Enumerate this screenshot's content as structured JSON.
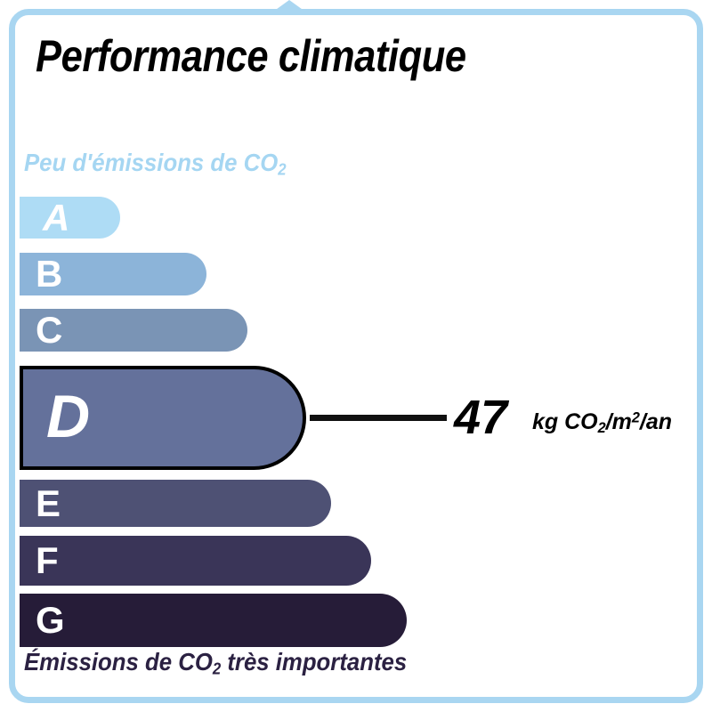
{
  "header": {
    "title": "Performance climatique"
  },
  "scale": {
    "top_label": {
      "text": "Peu d'émissions de CO",
      "sub": "2"
    },
    "bottom_label": {
      "text": "Émissions de CO",
      "sub": "2",
      "suffix": " très importantes"
    },
    "selected_grade": "D",
    "bars": [
      {
        "grade": "A",
        "color": "#AEDCF5"
      },
      {
        "grade": "B",
        "color": "#8CB4D9"
      },
      {
        "grade": "C",
        "color": "#7A94B5"
      },
      {
        "grade": "D",
        "color": "#64719B"
      },
      {
        "grade": "E",
        "color": "#4E5174"
      },
      {
        "grade": "F",
        "color": "#3A3558"
      },
      {
        "grade": "G",
        "color": "#261C38"
      }
    ]
  },
  "reading": {
    "value": "47",
    "unit": {
      "p1": "kg CO",
      "sub": "2",
      "p2": "/m",
      "sup": "2",
      "p3": "/an"
    }
  },
  "colors": {
    "frame_border": "#A9D6F1",
    "top_label_text": "#A5D6F2",
    "bottom_label_text": "#2B2142",
    "selected_outline": "#000000"
  },
  "chart_data": {
    "type": "bar",
    "title": "Performance climatique",
    "categories": [
      "A",
      "B",
      "C",
      "D",
      "E",
      "F",
      "G"
    ],
    "values": [
      113,
      210,
      256,
      322,
      350,
      395,
      435
    ],
    "bar_colors": [
      "#AEDCF5",
      "#8CB4D9",
      "#7A94B5",
      "#64719B",
      "#4E5174",
      "#3A3558",
      "#261C38"
    ],
    "highlighted_category": "D",
    "highlighted_value": 47,
    "unit": "kg CO2/m2/an",
    "top_axis_label": "Peu d'émissions de CO2",
    "bottom_axis_label": "Émissions de CO2 très importantes",
    "orientation": "horizontal",
    "legend": "none",
    "grid": "off"
  }
}
